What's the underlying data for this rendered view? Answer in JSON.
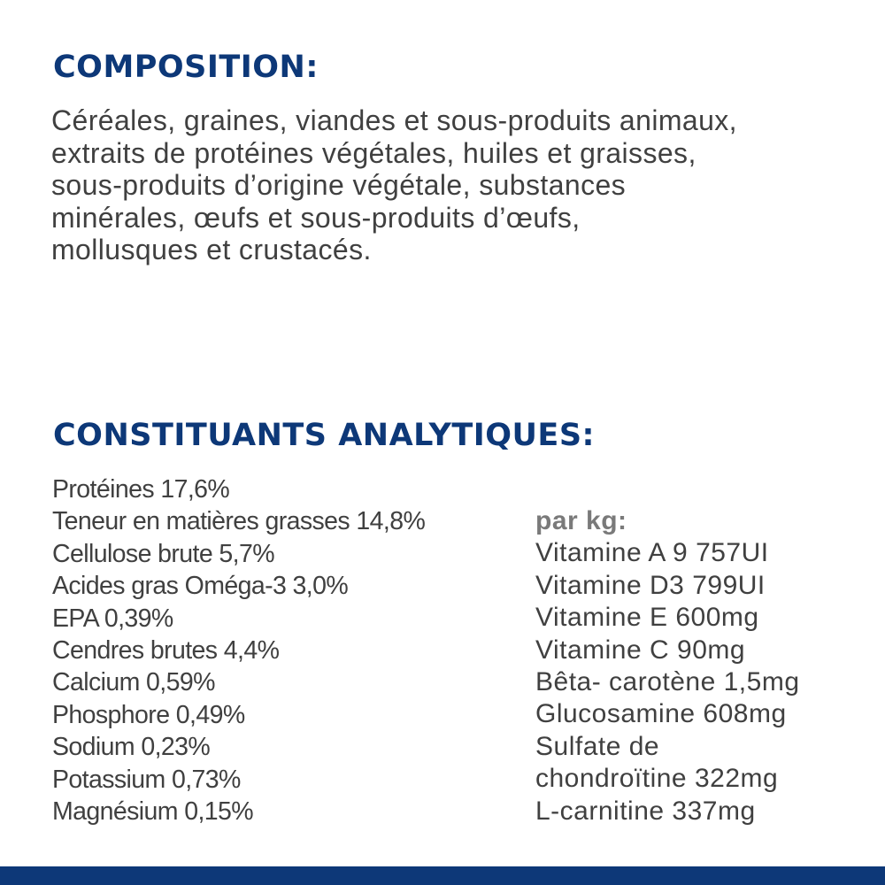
{
  "composition": {
    "title": "COMPOSITION:",
    "lines": [
      "Céréales, graines, viandes et sous-produits animaux,",
      "extraits de protéines végétales, huiles et graisses,",
      "sous-produits d’origine végétale, substances",
      "minérales, œufs et sous-produits d’œufs,",
      "mollusques et crustacés."
    ]
  },
  "analytical": {
    "title": "CONSTITUANTS ANALYTIQUES:",
    "left": [
      "Protéines 17,6%",
      "Teneur en matières grasses 14,8%",
      "Cellulose brute 5,7%",
      "Acides gras Oméga-3 3,0%",
      "EPA 0,39%",
      "Cendres brutes 4,4%",
      "Calcium 0,59%",
      "Phosphore 0,49%",
      "Sodium 0,23%",
      "Potassium 0,73%",
      "Magnésium 0,15%"
    ],
    "per_kg_label": "par kg:",
    "right": [
      "Vitamine A 9 757UI",
      "Vitamine D3 799UI",
      "Vitamine E 600mg",
      "Vitamine C 90mg",
      "Bêta- carotène 1,5mg",
      "Glucosamine 608mg",
      "Sulfate de",
      "chondroïtine 322mg",
      "L-carnitine 337mg"
    ]
  },
  "colors": {
    "heading": "#0d3878",
    "text": "#404040",
    "bottom_bar": "#0d3878"
  }
}
